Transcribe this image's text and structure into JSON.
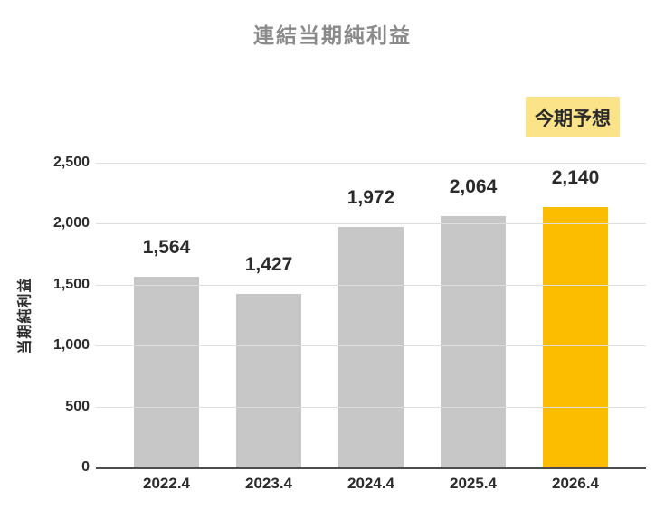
{
  "chart_data": {
    "type": "bar",
    "title": "連結当期純利益",
    "ylabel": "当期純利益",
    "xlabel": "",
    "categories": [
      "2022.4",
      "2023.4",
      "2024.4",
      "2025.4",
      "2026.4"
    ],
    "values": [
      1564,
      1427,
      1972,
      2064,
      2140
    ],
    "value_labels": [
      "1,564",
      "1,427",
      "1,972",
      "2,064",
      "2,140"
    ],
    "ylim": [
      0,
      2500
    ],
    "yticks": [
      0,
      500,
      1000,
      1500,
      2000,
      2500
    ],
    "ytick_labels": [
      "0",
      "500",
      "1,000",
      "1,500",
      "2,000",
      "2,500"
    ],
    "grid": true,
    "legend": "none",
    "bar_color": "#C7C7C7",
    "highlight_color": "#FCBD00",
    "highlight_index": 4
  },
  "badge": {
    "label": "今期予想",
    "bg": "#FBE38A"
  },
  "colors": {
    "title": "#8A8A8A",
    "text": "#2B2B2B",
    "grid": "#DEDEDE",
    "axis": "#4D4D4D",
    "background": "#FFFFFF"
  }
}
